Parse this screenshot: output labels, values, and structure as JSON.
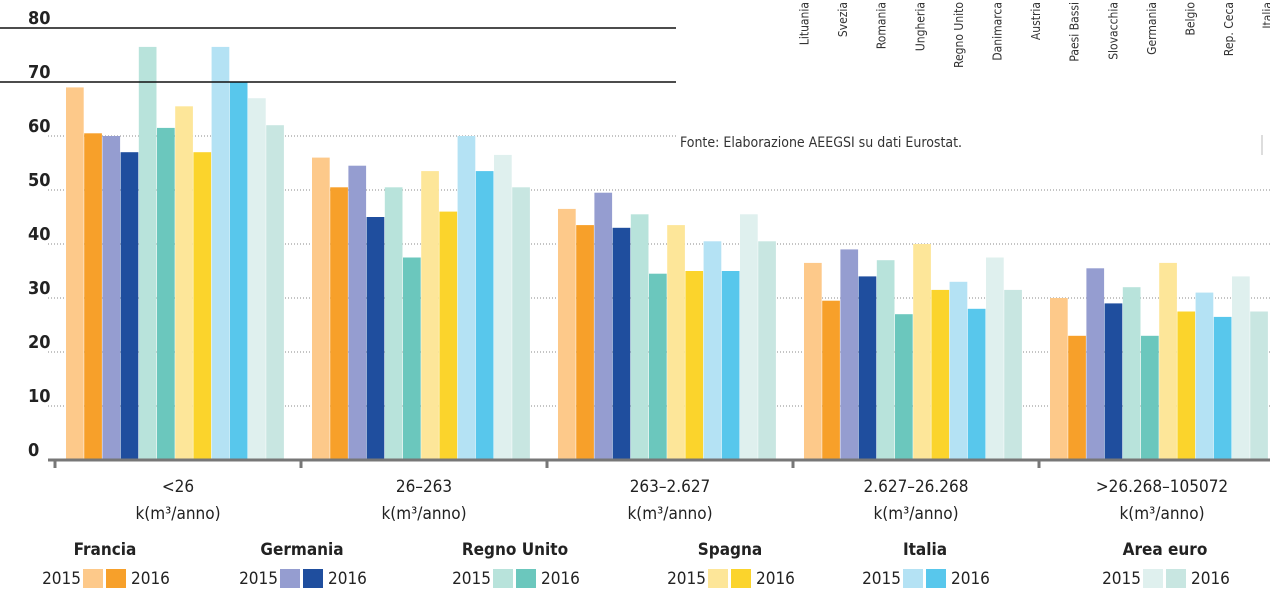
{
  "chart_data": {
    "type": "bar",
    "categories": [
      "<26",
      "26–263",
      "263–2.627",
      "2.627–26.268",
      ">26.268–105072"
    ],
    "category_unit": "k(m³/anno)",
    "ylim": [
      0,
      80
    ],
    "yticks": [
      0,
      10,
      20,
      30,
      40,
      50,
      60,
      70,
      80
    ],
    "grid": true,
    "groups": [
      {
        "name": "Francia",
        "series": [
          {
            "name": "2015",
            "color": "#fdc98a",
            "values": [
              69,
              56,
              46.5,
              36.5,
              30
            ]
          },
          {
            "name": "2016",
            "color": "#f7a02a",
            "values": [
              60.5,
              50.5,
              43.5,
              29.5,
              23
            ]
          }
        ]
      },
      {
        "name": "Germania",
        "series": [
          {
            "name": "2015",
            "color": "#959dd0",
            "values": [
              60,
              54.5,
              49.5,
              39,
              35.5
            ]
          },
          {
            "name": "2016",
            "color": "#1f4e9e",
            "values": [
              57,
              45,
              43,
              34,
              29
            ]
          }
        ]
      },
      {
        "name": "Regno Unito",
        "series": [
          {
            "name": "2015",
            "color": "#b8e3db",
            "values": [
              76.5,
              50.5,
              45.5,
              37,
              32
            ]
          },
          {
            "name": "2016",
            "color": "#6bc7bd",
            "values": [
              61.5,
              37.5,
              34.5,
              27,
              23
            ]
          }
        ]
      },
      {
        "name": "Spagna",
        "series": [
          {
            "name": "2015",
            "color": "#fde699",
            "values": [
              65.5,
              53.5,
              43.5,
              40,
              36.5
            ]
          },
          {
            "name": "2016",
            "color": "#fbd42c",
            "values": [
              57,
              46,
              35,
              31.5,
              27.5
            ]
          }
        ]
      },
      {
        "name": "Italia",
        "series": [
          {
            "name": "2015",
            "color": "#b4e2f4",
            "values": [
              76.5,
              60,
              40.5,
              33,
              31
            ]
          },
          {
            "name": "2016",
            "color": "#58c7ec",
            "values": [
              70,
              53.5,
              35,
              28,
              26.5
            ]
          }
        ]
      },
      {
        "name": "Area euro",
        "series": [
          {
            "name": "2015",
            "color": "#dff0ee",
            "values": [
              67,
              56.5,
              45.5,
              37.5,
              34
            ]
          },
          {
            "name": "2016",
            "color": "#c8e6e1",
            "values": [
              62,
              50.5,
              40.5,
              31.5,
              27.5
            ]
          }
        ]
      }
    ]
  },
  "overlay": {
    "labels": [
      "Lituania",
      "Svezia",
      "Romania",
      "Ungheria",
      "Regno Unito",
      "Danimarca",
      "Austria",
      "Paesi Bassi",
      "Slovacchia",
      "Germania",
      "Belgio",
      "Rep. Ceca",
      "Italia"
    ],
    "source": "Fonte: Elaborazione AEEGSI su dati Eurostat."
  }
}
